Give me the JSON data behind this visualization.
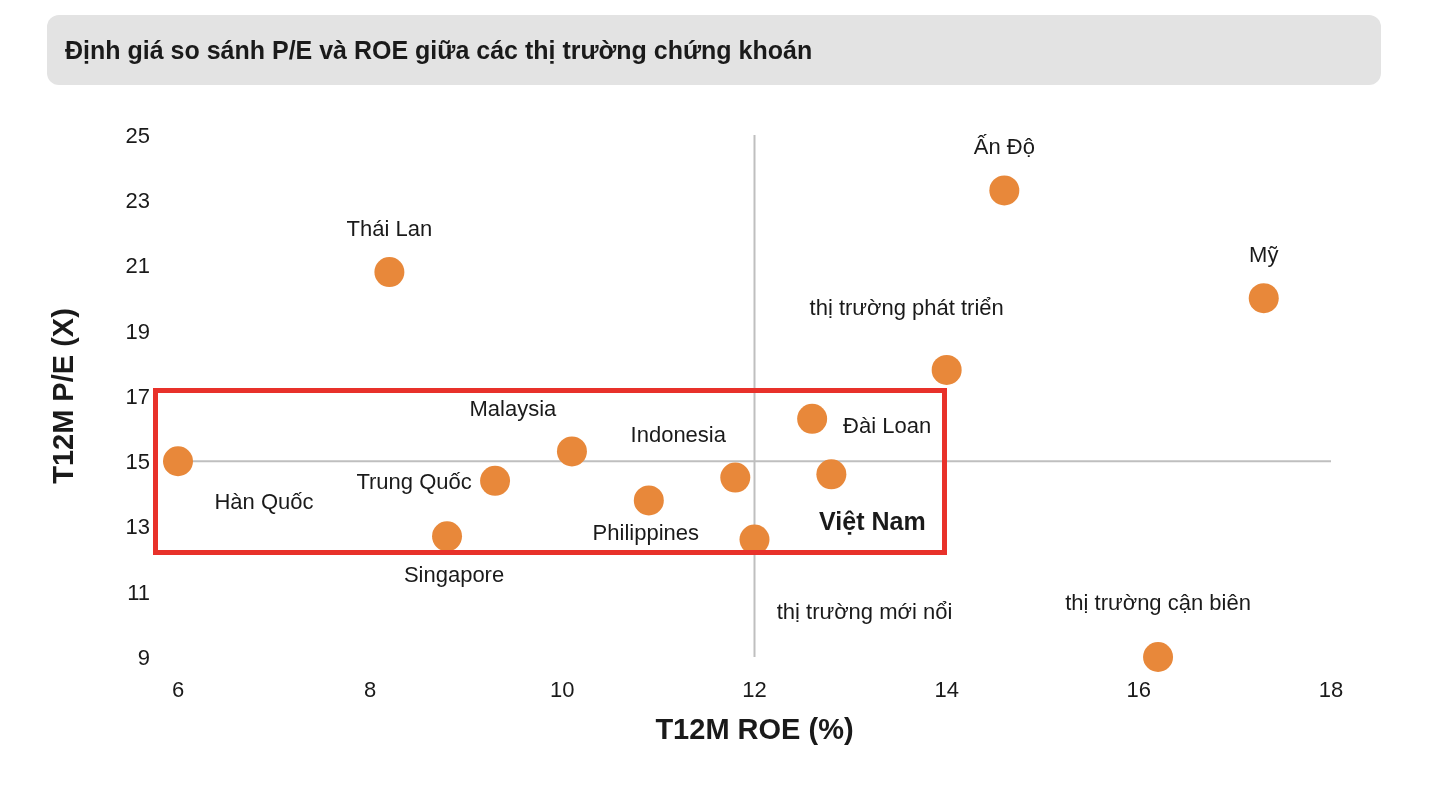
{
  "chart_data": {
    "type": "scatter",
    "title": "Định giá so sánh P/E và ROE giữa các thị trường chứng khoán",
    "xlabel": "T12M ROE (%)",
    "ylabel": "T12M P/E (X)",
    "xlim": [
      6,
      18
    ],
    "xticks": [
      6,
      8,
      10,
      12,
      14,
      16,
      18
    ],
    "ylim": [
      9,
      25
    ],
    "yticks": [
      9,
      11,
      13,
      15,
      17,
      19,
      21,
      23,
      25
    ],
    "grid": false,
    "legend": false,
    "marker": "circle",
    "ref_lines": [
      {
        "axis": "x",
        "value": 12,
        "color": "#bfbfbf"
      },
      {
        "axis": "y",
        "value": 15,
        "color": "#bfbfbf"
      }
    ],
    "series": [
      {
        "name": "Ấn Độ",
        "color": "#e8883a",
        "x": [
          14.6
        ],
        "values": [
          23.3
        ]
      },
      {
        "name": "Mỹ",
        "color": "#e8883a",
        "x": [
          17.3
        ],
        "values": [
          20.0
        ]
      },
      {
        "name": "Thái Lan",
        "color": "#e8883a",
        "x": [
          8.2
        ],
        "values": [
          20.8
        ]
      },
      {
        "name": "thị trường phát triển",
        "color": "#e8883a",
        "x": [
          14.0
        ],
        "values": [
          17.8
        ]
      },
      {
        "name": "Đài Loan",
        "color": "#e8883a",
        "x": [
          12.6
        ],
        "values": [
          16.3
        ]
      },
      {
        "name": "Malaysia",
        "color": "#e8883a",
        "x": [
          10.1
        ],
        "values": [
          15.3
        ]
      },
      {
        "name": "Hàn Quốc",
        "color": "#e8883a",
        "x": [
          6.0
        ],
        "values": [
          15.0
        ]
      },
      {
        "name": "Việt Nam",
        "color": "#e8883a",
        "x": [
          12.8
        ],
        "values": [
          14.6
        ]
      },
      {
        "name": "Indonesia",
        "color": "#e8883a",
        "x": [
          11.8
        ],
        "values": [
          14.5
        ]
      },
      {
        "name": "Trung Quốc",
        "color": "#e8883a",
        "x": [
          9.3
        ],
        "values": [
          14.4
        ]
      },
      {
        "name": "Philippines",
        "color": "#e8883a",
        "x": [
          10.9
        ],
        "values": [
          13.8
        ]
      },
      {
        "name": "Singapore",
        "color": "#e8883a",
        "x": [
          8.8
        ],
        "values": [
          12.7
        ]
      },
      {
        "name": "thị trường mới nổi",
        "color": "#e8883a",
        "x": [
          12.0
        ],
        "values": [
          12.6
        ]
      },
      {
        "name": "thị trường cận biên",
        "color": "#e8883a",
        "x": [
          16.2
        ],
        "values": [
          9.0
        ]
      }
    ]
  }
}
